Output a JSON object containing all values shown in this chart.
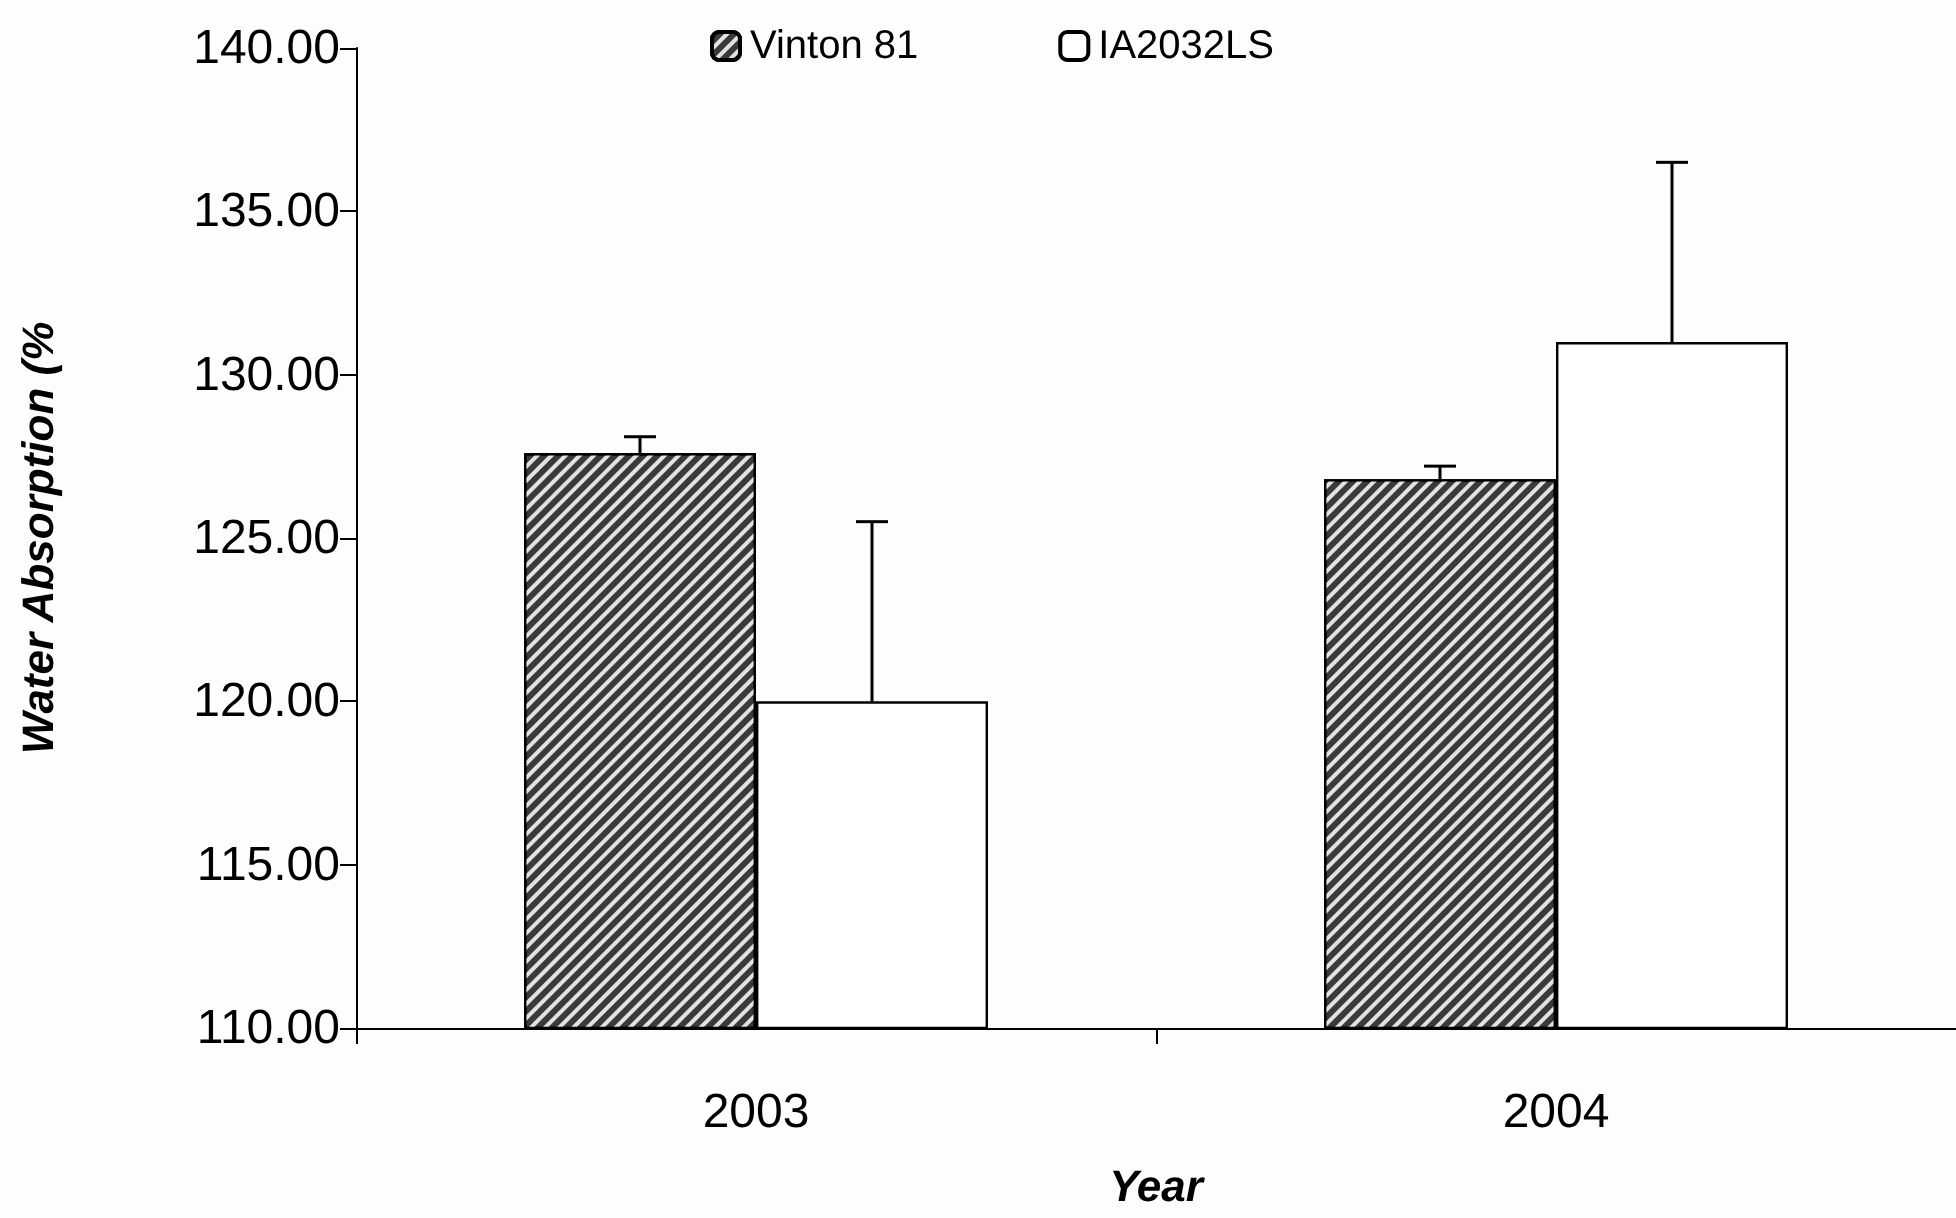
{
  "chart_data": {
    "type": "bar",
    "xlabel": "Year",
    "ylabel": "Water Absorption (%",
    "categories": [
      "2003",
      "2004"
    ],
    "series": [
      {
        "name": "Vinton 81",
        "color": "#3a3a3a",
        "values": [
          127.6,
          126.8
        ],
        "errors": [
          [
            127.6,
            128.1
          ],
          [
            126.8,
            127.2
          ]
        ]
      },
      {
        "name": "IA2032LS",
        "color": "#ffffff",
        "values": [
          120.0,
          131.0
        ],
        "errors": [
          [
            120.0,
            125.5
          ],
          [
            131.0,
            136.5
          ]
        ]
      }
    ],
    "ylim": [
      110,
      140
    ],
    "yticks": [
      {
        "value": 110,
        "label": "110.00"
      },
      {
        "value": 115,
        "label": "115.00"
      },
      {
        "value": 120,
        "label": "120.00"
      },
      {
        "value": 125,
        "label": "125.00"
      },
      {
        "value": 130,
        "label": "130.00"
      },
      {
        "value": 135,
        "label": "135.00"
      },
      {
        "value": 140,
        "label": "140.00"
      }
    ],
    "grid": false,
    "legend": "top"
  }
}
